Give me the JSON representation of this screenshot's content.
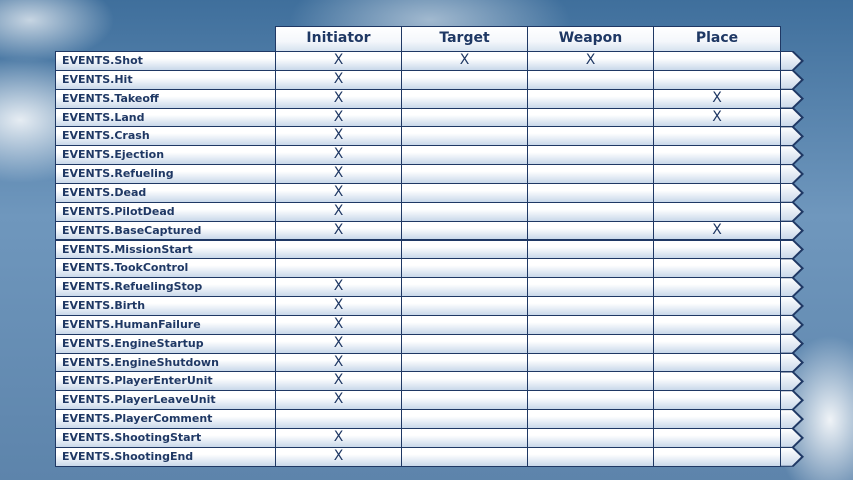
{
  "table": {
    "header": [
      "Initiator",
      "Target",
      "Weapon",
      "Place"
    ],
    "rows": [
      [
        "EVENTS.Shot",
        "X",
        "X",
        "X",
        null
      ],
      [
        "EVENTS.Hit",
        "X",
        null,
        null,
        null
      ],
      [
        "EVENTS.Takeoff",
        "X",
        null,
        null,
        "X"
      ],
      [
        "EVENTS.Land",
        "X",
        null,
        null,
        "X"
      ],
      [
        "EVENTS.Crash",
        "X",
        null,
        null,
        null
      ],
      [
        "EVENTS.Ejection",
        "X",
        null,
        null,
        null
      ],
      [
        "EVENTS.Refueling",
        "X",
        null,
        null,
        null
      ],
      [
        "EVENTS.Dead",
        "X",
        null,
        null,
        null
      ],
      [
        "EVENTS.PilotDead",
        "X",
        null,
        null,
        null
      ],
      [
        "EVENTS.BaseCaptured",
        "X",
        null,
        null,
        "X"
      ],
      [
        "EVENTS.MissionStart",
        null,
        null,
        null,
        null
      ],
      [
        "EVENTS.TookControl",
        null,
        null,
        null,
        null
      ],
      [
        "EVENTS.RefuelingStop",
        "X",
        null,
        null,
        null
      ],
      [
        "EVENTS.Birth",
        "X",
        null,
        null,
        null
      ],
      [
        "EVENTS.HumanFailure",
        "X",
        null,
        null,
        null
      ],
      [
        "EVENTS.EngineStartup",
        "X",
        null,
        null,
        null
      ],
      [
        "EVENTS.EngineShutdown",
        "X",
        null,
        null,
        null
      ],
      [
        "EVENTS.PlayerEnterUnit",
        "X",
        null,
        null,
        null
      ],
      [
        "EVENTS.PlayerLeaveUnit",
        "X",
        null,
        null,
        null
      ],
      [
        "EVENTS.PlayerComment",
        null,
        null,
        null,
        null
      ],
      [
        "EVENTS.ShootingStart",
        "X",
        null,
        null,
        null
      ],
      [
        "EVENTS.ShootingEnd",
        "X",
        null,
        null,
        null
      ]
    ]
  }
}
